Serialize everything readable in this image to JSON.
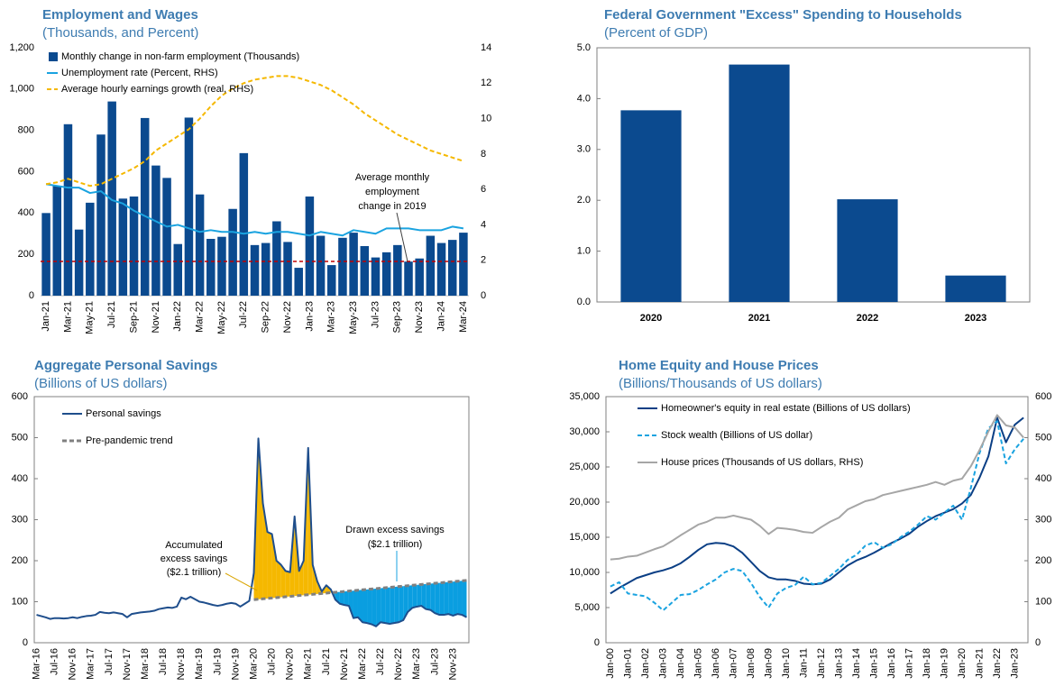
{
  "chart_data": [
    {
      "type": "combo",
      "title": "Employment and Wages",
      "subtitle": "(Thousands, and Percent)",
      "categories": [
        "Jan-21",
        null,
        "Mar-21",
        null,
        "May-21",
        null,
        "Jul-21",
        null,
        "Sep-21",
        null,
        "Nov-21",
        null,
        "Jan-22",
        null,
        "Mar-22",
        null,
        "May-22",
        null,
        "Jul-22",
        null,
        "Sep-22",
        null,
        "Nov-22",
        null,
        "Jan-23",
        null,
        "Mar-23",
        null,
        "May-23",
        null,
        "Jul-23",
        null,
        "Sep-23",
        null,
        "Nov-23",
        null,
        "Jan-24",
        null,
        "Mar-24"
      ],
      "series": [
        {
          "name": "Monthly change in non-farm employment (Thousands)",
          "type": "bar",
          "color": "#0b4a8f",
          "values": [
            400,
            530,
            830,
            320,
            450,
            780,
            940,
            470,
            480,
            860,
            630,
            570,
            250,
            862,
            490,
            275,
            285,
            420,
            690,
            245,
            255,
            360,
            260,
            135,
            480,
            290,
            148,
            280,
            305,
            240,
            185,
            210,
            245,
            165,
            180,
            290,
            255,
            270,
            305
          ]
        },
        {
          "name": "Unemployment rate (Percent, RHS)",
          "type": "line",
          "axis": "y2",
          "color": "#1aa3e0",
          "values": [
            6.3,
            6.2,
            6.1,
            6.1,
            5.8,
            5.9,
            5.4,
            5.2,
            4.8,
            4.5,
            4.2,
            3.9,
            4.0,
            3.8,
            3.6,
            3.7,
            3.6,
            3.6,
            3.5,
            3.6,
            3.5,
            3.6,
            3.6,
            3.5,
            3.4,
            3.6,
            3.5,
            3.4,
            3.7,
            3.6,
            3.5,
            3.8,
            3.8,
            3.8,
            3.7,
            3.7,
            3.7,
            3.9,
            3.8
          ]
        },
        {
          "name": "Average hourly earnings growth (real, RHS)",
          "type": "line",
          "axis": "y2",
          "color": "#f5b800",
          "dash": true,
          "values": [
            6.3,
            6.4,
            6.6,
            6.4,
            6.2,
            6.3,
            6.6,
            6.9,
            7.2,
            7.6,
            8.2,
            8.6,
            9.0,
            9.4,
            10.0,
            10.7,
            11.3,
            11.7,
            12.0,
            12.2,
            12.3,
            12.4,
            12.4,
            12.3,
            12.1,
            11.9,
            11.6,
            11.2,
            10.8,
            10.3,
            9.9,
            9.5,
            9.1,
            8.8,
            8.5,
            8.2,
            8.0,
            7.8,
            7.6
          ]
        }
      ],
      "ylim": [
        0,
        1200
      ],
      "yticks": [
        0,
        200,
        400,
        600,
        800,
        {
          "value": 1000,
          "label": "1,000"
        },
        {
          "value": 1200,
          "label": "1,200"
        }
      ],
      "y2lim": [
        0,
        14
      ],
      "y2ticks": [
        0,
        2,
        4,
        6,
        8,
        10,
        12,
        14
      ],
      "reference_line": {
        "value": 166,
        "color": "#c00000",
        "label": [
          "Average monthly",
          "employment",
          "change in 2019"
        ]
      },
      "legend": "upper left"
    },
    {
      "type": "bar",
      "title": "Federal Government \"Excess\" Spending to Households",
      "subtitle": "(Percent of GDP)",
      "categories": [
        "2020",
        "2021",
        "2022",
        "2023"
      ],
      "series": [
        {
          "type": "bar",
          "color": "#0b4a8f",
          "values": [
            3.77,
            4.67,
            2.02,
            0.52
          ]
        }
      ],
      "ylim": [
        0,
        5
      ],
      "yticks": [
        {
          "value": 0,
          "label": "0.0"
        },
        {
          "value": 1,
          "label": "1.0"
        },
        {
          "value": 2,
          "label": "2.0"
        },
        {
          "value": 3,
          "label": "3.0"
        },
        {
          "value": 4,
          "label": "4.0"
        },
        {
          "value": 5,
          "label": "5.0"
        }
      ]
    },
    {
      "type": "line",
      "title": "Aggregate Personal Savings",
      "subtitle": "(Billions of US dollars)",
      "categories": [
        "Mar-16",
        null,
        null,
        null,
        "Jul-16",
        null,
        null,
        null,
        "Nov-16",
        null,
        null,
        null,
        "Mar-17",
        null,
        null,
        null,
        "Jul-17",
        null,
        null,
        null,
        "Nov-17",
        null,
        null,
        null,
        "Mar-18",
        null,
        null,
        null,
        "Jul-18",
        null,
        null,
        null,
        "Nov-18",
        null,
        null,
        null,
        "Mar-19",
        null,
        null,
        null,
        "Jul-19",
        null,
        null,
        null,
        "Nov-19",
        null,
        null,
        null,
        "Mar-20",
        null,
        null,
        null,
        "Jul-20",
        null,
        null,
        null,
        "Nov-20",
        null,
        null,
        null,
        "Mar-21",
        null,
        null,
        null,
        "Jul-21",
        null,
        null,
        null,
        "Nov-21",
        null,
        null,
        null,
        "Mar-22",
        null,
        null,
        null,
        "Jul-22",
        null,
        null,
        null,
        "Nov-22",
        null,
        null,
        null,
        "Mar-23",
        null,
        null,
        null,
        "Jul-23",
        null,
        null,
        null,
        "Nov-23",
        null,
        null,
        null
      ],
      "series": [
        {
          "name": "Personal savings",
          "type": "line",
          "color": "#1f4e8c",
          "values": [
            68,
            65,
            62,
            58,
            60,
            60,
            59,
            60,
            62,
            60,
            63,
            65,
            66,
            68,
            75,
            73,
            72,
            74,
            72,
            70,
            62,
            70,
            72,
            74,
            75,
            76,
            78,
            82,
            84,
            86,
            85,
            88,
            110,
            106,
            112,
            106,
            100,
            98,
            95,
            92,
            90,
            92,
            95,
            97,
            95,
            88,
            95,
            102,
            170,
            498,
            340,
            270,
            265,
            200,
            190,
            175,
            172,
            308,
            175,
            200,
            475,
            190,
            150,
            125,
            140,
            130,
            105,
            95,
            92,
            90,
            60,
            62,
            50,
            48,
            45,
            40,
            50,
            48,
            46,
            48,
            50,
            55,
            75,
            85,
            88,
            90,
            82,
            80,
            72,
            68,
            68,
            70,
            66,
            70,
            68,
            62
          ]
        },
        {
          "name": "Pre-pandemic trend",
          "type": "line",
          "color": "#808080",
          "dash": true,
          "values": [
            null,
            null,
            null,
            null,
            null,
            null,
            null,
            null,
            null,
            null,
            null,
            null,
            null,
            null,
            null,
            null,
            null,
            null,
            null,
            null,
            null,
            null,
            null,
            null,
            null,
            null,
            null,
            null,
            null,
            null,
            null,
            null,
            null,
            null,
            null,
            null,
            null,
            null,
            null,
            null,
            null,
            null,
            null,
            null,
            null,
            null,
            null,
            null,
            105,
            106,
            107,
            108,
            109,
            110,
            111,
            112,
            113,
            114,
            115,
            116,
            117,
            118,
            119,
            120,
            121,
            122,
            123,
            124,
            125,
            126,
            127,
            128,
            129,
            130,
            131,
            132,
            133,
            134,
            135,
            136,
            137,
            138,
            139,
            140,
            141,
            142,
            143,
            144,
            145,
            146,
            147,
            148,
            149,
            150,
            151,
            152
          ]
        }
      ],
      "fill_above_color": "#f5b800",
      "fill_below_color": "#0a9ee0",
      "annotations": [
        {
          "text": [
            "Accumulated",
            "excess savings",
            "($2.1 trillion)"
          ],
          "color": "#d9a400"
        },
        {
          "text": [
            "Drawn excess savings",
            "($2.1 trillion)"
          ],
          "color": "#1aa3e0"
        }
      ],
      "ylim": [
        0,
        600
      ],
      "yticks": [
        0,
        100,
        200,
        300,
        400,
        500,
        600
      ],
      "legend": "upper left"
    },
    {
      "type": "line",
      "title": "Home Equity and House Prices",
      "subtitle": "(Billions/Thousands of US dollars)",
      "categories": [
        "Jan-00",
        null,
        "Jan-01",
        null,
        "Jan-02",
        null,
        "Jan-03",
        null,
        "Jan-04",
        null,
        "Jan-05",
        null,
        "Jan-06",
        null,
        "Jan-07",
        null,
        "Jan-08",
        null,
        "Jan-09",
        null,
        "Jan-10",
        null,
        "Jan-11",
        null,
        "Jan-12",
        null,
        "Jan-13",
        null,
        "Jan-14",
        null,
        "Jan-15",
        null,
        "Jan-16",
        null,
        "Jan-17",
        null,
        "Jan-18",
        null,
        "Jan-19",
        null,
        "Jan-20",
        null,
        "Jan-21",
        null,
        "Jan-22",
        null,
        "Jan-23",
        null
      ],
      "series": [
        {
          "name": "Homeowner's equity in real estate (Billions of US dollars)",
          "type": "line",
          "color": "#0b3f85",
          "values": [
            7000,
            7800,
            8500,
            9200,
            9600,
            10000,
            10300,
            10700,
            11300,
            12200,
            13200,
            14000,
            14200,
            14100,
            13700,
            12800,
            11500,
            10200,
            9300,
            9000,
            9000,
            8800,
            8400,
            8300,
            8400,
            9000,
            10000,
            11000,
            11700,
            12200,
            12800,
            13500,
            14200,
            14800,
            15500,
            16500,
            17300,
            18000,
            18500,
            19000,
            19800,
            21000,
            23500,
            26500,
            32000,
            28500,
            31000,
            32000
          ]
        },
        {
          "name": "Stock wealth (Billions of US dollar)",
          "type": "line",
          "color": "#1aa3e0",
          "dash": true,
          "values": [
            8000,
            8600,
            7000,
            6800,
            6600,
            5700,
            4600,
            5700,
            6800,
            6900,
            7500,
            8300,
            9000,
            10000,
            10500,
            10200,
            8500,
            6500,
            5000,
            7000,
            7800,
            8200,
            9400,
            8300,
            8500,
            9500,
            10500,
            11800,
            12500,
            13800,
            14300,
            13500,
            14000,
            15000,
            15800,
            16800,
            18000,
            17500,
            18500,
            19500,
            17500,
            22000,
            27000,
            30500,
            31500,
            25500,
            27500,
            29000
          ]
        },
        {
          "name": "House prices (Thousands of US dollars, RHS)",
          "type": "line",
          "axis": "y2",
          "color": "#a6a6a6",
          "values": [
            203,
            205,
            210,
            212,
            220,
            228,
            235,
            248,
            262,
            275,
            288,
            295,
            305,
            305,
            310,
            305,
            300,
            285,
            265,
            280,
            278,
            275,
            270,
            268,
            282,
            295,
            305,
            325,
            335,
            345,
            350,
            360,
            365,
            370,
            375,
            380,
            385,
            392,
            385,
            395,
            400,
            430,
            470,
            515,
            555,
            530,
            525,
            500
          ]
        }
      ],
      "ylim": [
        0,
        35000
      ],
      "yticks": [
        0,
        {
          "value": 5000,
          "label": "5,000"
        },
        {
          "value": 10000,
          "label": "10,000"
        },
        {
          "value": 15000,
          "label": "15,000"
        },
        {
          "value": 20000,
          "label": "20,000"
        },
        {
          "value": 25000,
          "label": "25,000"
        },
        {
          "value": 30000,
          "label": "30,000"
        },
        {
          "value": 35000,
          "label": "35,000"
        }
      ],
      "y2lim": [
        0,
        600
      ],
      "y2ticks": [
        0,
        100,
        200,
        300,
        400,
        500,
        600
      ],
      "legend": "upper left"
    }
  ]
}
